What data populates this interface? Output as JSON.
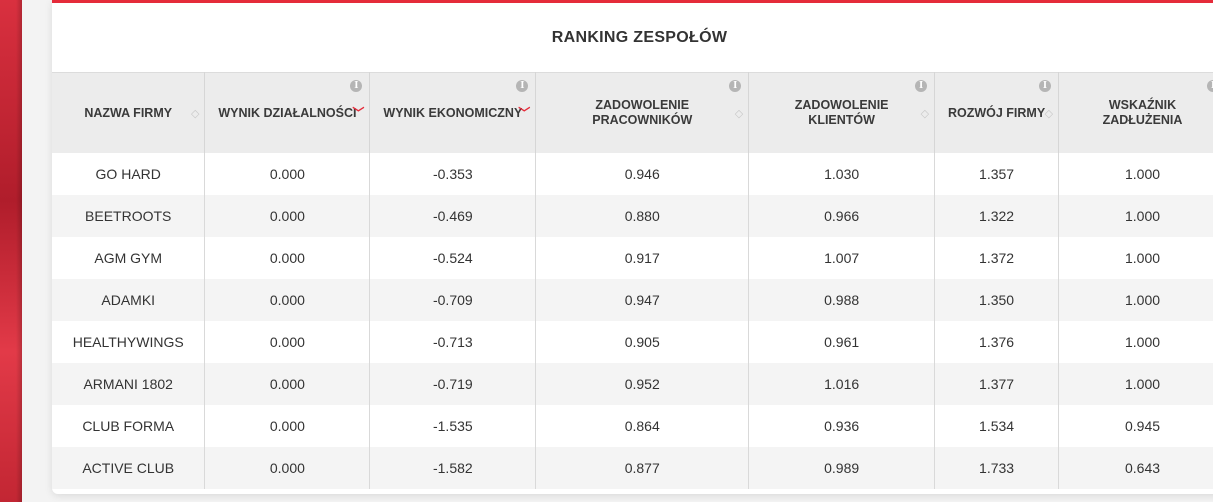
{
  "page": {
    "title": "RANKING ZESPOŁÓW",
    "colors": {
      "accent": "#e52b3a",
      "header_bg": "#ececec",
      "alt_row": "#f4f4f4"
    }
  },
  "table": {
    "headers": [
      {
        "label": "NAZWA FIRMY",
        "info": false,
        "sort": "neutral"
      },
      {
        "label": "WYNIK DZIAŁALNOŚCI",
        "info": true,
        "sort": "desc-active"
      },
      {
        "label": "WYNIK EKONOMICZNY",
        "info": true,
        "sort": "desc-active"
      },
      {
        "label": "ZADOWOLENIE PRACOWNIKÓW",
        "info": true,
        "sort": "neutral"
      },
      {
        "label": "ZADOWOLENIE KLIENTÓW",
        "info": true,
        "sort": "neutral"
      },
      {
        "label": "ROZWÓJ FIRMY",
        "info": true,
        "sort": "neutral"
      },
      {
        "label": "WSKAŹNIK ZADŁUŻENIA",
        "info": true,
        "sort": "neutral"
      }
    ],
    "rows": [
      [
        "GO HARD",
        "0.000",
        "-0.353",
        "0.946",
        "1.030",
        "1.357",
        "1.000"
      ],
      [
        "BEETROOTS",
        "0.000",
        "-0.469",
        "0.880",
        "0.966",
        "1.322",
        "1.000"
      ],
      [
        "AGM GYM",
        "0.000",
        "-0.524",
        "0.917",
        "1.007",
        "1.372",
        "1.000"
      ],
      [
        "ADAMKI",
        "0.000",
        "-0.709",
        "0.947",
        "0.988",
        "1.350",
        "1.000"
      ],
      [
        "HEALTHYWINGS",
        "0.000",
        "-0.713",
        "0.905",
        "0.961",
        "1.376",
        "1.000"
      ],
      [
        "ARMANI 1802",
        "0.000",
        "-0.719",
        "0.952",
        "1.016",
        "1.377",
        "1.000"
      ],
      [
        "CLUB FORMA",
        "0.000",
        "-1.535",
        "0.864",
        "0.936",
        "1.534",
        "0.945"
      ],
      [
        "ACTIVE CLUB",
        "0.000",
        "-1.582",
        "0.877",
        "0.989",
        "1.733",
        "0.643"
      ]
    ],
    "info_icon_text": "i"
  }
}
